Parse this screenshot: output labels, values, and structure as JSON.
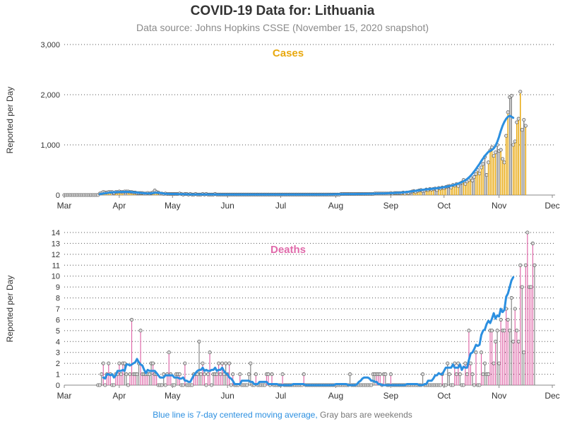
{
  "title": "COVID-19 Data for: Lithuania",
  "subtitle": "Data source: Johns Hopkins CSSE (November 15, 2020 snapshot)",
  "footer": {
    "moving_average_note": "Blue line is 7-day centered moving average,",
    "weekend_note": "Gray bars are weekends"
  },
  "colors": {
    "cases": "#e8a80e",
    "deaths": "#e06aaa",
    "moving_average": "#2b8fe0",
    "weekend": "#888888",
    "grid": "#555555",
    "axis_text": "#333333"
  },
  "chart_data": [
    {
      "type": "bar",
      "title": "Cases",
      "ylabel": "Reported per Day",
      "ylim": [
        0,
        3000
      ],
      "yticks": [
        "0",
        "1,000",
        "2,000",
        "3,000"
      ],
      "ytick_values": [
        0,
        1000,
        2000,
        3000
      ],
      "xlim": [
        "2020-03-01",
        "2020-12-01"
      ],
      "xticks": [
        "Mar",
        "Apr",
        "May",
        "Jun",
        "Jul",
        "Aug",
        "Sep",
        "Oct",
        "Nov",
        "Dec"
      ],
      "xtick_dates": [
        "2020-03-01",
        "2020-04-01",
        "2020-05-01",
        "2020-06-01",
        "2020-07-01",
        "2020-08-01",
        "2020-09-01",
        "2020-10-01",
        "2020-11-01",
        "2020-12-01"
      ],
      "start_date": "2020-03-01",
      "values": [
        0,
        0,
        0,
        0,
        0,
        0,
        0,
        0,
        0,
        0,
        0,
        0,
        0,
        0,
        0,
        0,
        0,
        0,
        0,
        0,
        30,
        40,
        60,
        50,
        50,
        60,
        60,
        60,
        40,
        60,
        60,
        70,
        60,
        60,
        70,
        70,
        70,
        60,
        60,
        50,
        50,
        40,
        40,
        40,
        40,
        30,
        30,
        40,
        30,
        40,
        50,
        90,
        60,
        50,
        30,
        30,
        20,
        30,
        20,
        20,
        20,
        20,
        20,
        20,
        20,
        30,
        20,
        10,
        20,
        20,
        10,
        20,
        10,
        10,
        20,
        10,
        10,
        10,
        20,
        10,
        20,
        10,
        10,
        10,
        10,
        20,
        10,
        10,
        10,
        10,
        10,
        10,
        10,
        10,
        10,
        10,
        10,
        10,
        10,
        10,
        10,
        10,
        10,
        10,
        10,
        10,
        10,
        10,
        10,
        10,
        10,
        10,
        10,
        10,
        10,
        10,
        10,
        10,
        10,
        10,
        10,
        10,
        10,
        10,
        10,
        10,
        10,
        10,
        10,
        10,
        10,
        10,
        10,
        10,
        10,
        10,
        10,
        10,
        10,
        10,
        10,
        10,
        10,
        10,
        10,
        10,
        10,
        10,
        10,
        10,
        10,
        10,
        10,
        10,
        10,
        10,
        20,
        20,
        20,
        20,
        20,
        20,
        20,
        20,
        20,
        20,
        20,
        20,
        20,
        20,
        20,
        20,
        20,
        20,
        20,
        30,
        30,
        30,
        30,
        30,
        30,
        30,
        30,
        30,
        40,
        30,
        40,
        40,
        40,
        40,
        40,
        50,
        30,
        50,
        40,
        60,
        70,
        80,
        60,
        80,
        90,
        100,
        80,
        90,
        110,
        100,
        120,
        110,
        120,
        130,
        100,
        140,
        130,
        150,
        140,
        160,
        170,
        180,
        150,
        200,
        190,
        220,
        180,
        230,
        250,
        300,
        220,
        270,
        300,
        340,
        290,
        360,
        420,
        500,
        430,
        550,
        620,
        760,
        400,
        650,
        890,
        950,
        780,
        850,
        1000,
        880,
        900,
        720,
        650,
        1180,
        1650,
        1950,
        1980,
        1000,
        1070,
        1450,
        1520,
        2060,
        1300,
        1500,
        1380
      ],
      "moving_average": [
        null,
        null,
        null,
        null,
        null,
        null,
        null,
        null,
        null,
        null,
        null,
        null,
        null,
        null,
        null,
        null,
        null,
        null,
        null,
        null,
        20,
        25,
        30,
        35,
        40,
        45,
        50,
        55,
        55,
        58,
        60,
        62,
        62,
        64,
        64,
        65,
        64,
        63,
        60,
        57,
        54,
        50,
        46,
        42,
        39,
        36,
        34,
        33,
        33,
        36,
        40,
        44,
        46,
        45,
        42,
        36,
        30,
        26,
        24,
        22,
        21,
        21,
        21,
        21,
        20,
        19,
        18,
        17,
        16,
        15,
        14,
        13,
        13,
        13,
        12,
        12,
        12,
        12,
        12,
        12,
        12,
        12,
        12,
        12,
        12,
        12,
        11,
        11,
        11,
        11,
        11,
        11,
        11,
        11,
        11,
        11,
        11,
        11,
        11,
        11,
        11,
        11,
        11,
        11,
        11,
        11,
        11,
        11,
        11,
        11,
        11,
        11,
        11,
        11,
        11,
        11,
        11,
        11,
        11,
        11,
        11,
        11,
        11,
        11,
        11,
        11,
        11,
        11,
        11,
        11,
        11,
        11,
        11,
        11,
        11,
        11,
        11,
        11,
        11,
        11,
        11,
        11,
        11,
        11,
        11,
        11,
        11,
        11,
        11,
        12,
        12,
        13,
        14,
        15,
        16,
        17,
        18,
        19,
        20,
        20,
        20,
        20,
        20,
        20,
        20,
        21,
        21,
        21,
        22,
        22,
        23,
        24,
        25,
        26,
        27,
        28,
        29,
        30,
        31,
        32,
        33,
        34,
        35,
        36,
        37,
        39,
        41,
        43,
        45,
        47,
        50,
        54,
        58,
        62,
        66,
        70,
        75,
        80,
        85,
        90,
        95,
        100,
        104,
        108,
        112,
        116,
        120,
        124,
        128,
        132,
        136,
        140,
        146,
        152,
        158,
        164,
        170,
        178,
        186,
        195,
        205,
        215,
        228,
        242,
        258,
        275,
        295,
        320,
        350,
        385,
        425,
        470,
        520,
        570,
        620,
        680,
        730,
        780,
        820,
        860,
        880,
        900,
        930,
        980,
        1060,
        1160,
        1280,
        1380,
        1460,
        1520,
        1560,
        1580,
        1560,
        1540
      ],
      "weekend_style": "gray bars"
    },
    {
      "type": "bar",
      "title": "Deaths",
      "ylabel": "Reported per Day",
      "ylim": [
        0,
        14
      ],
      "yticks": [
        "0",
        "1",
        "2",
        "3",
        "4",
        "5",
        "6",
        "7",
        "8",
        "9",
        "10",
        "11",
        "12",
        "13",
        "14"
      ],
      "ytick_values": [
        0,
        1,
        2,
        3,
        4,
        5,
        6,
        7,
        8,
        9,
        10,
        11,
        12,
        13,
        14
      ],
      "xlim": [
        "2020-03-01",
        "2020-12-01"
      ],
      "xticks": [
        "Mar",
        "Apr",
        "May",
        "Jun",
        "Jul",
        "Aug",
        "Sep",
        "Oct",
        "Nov",
        "Dec"
      ],
      "xtick_dates": [
        "2020-03-01",
        "2020-04-01",
        "2020-05-01",
        "2020-06-01",
        "2020-07-01",
        "2020-08-01",
        "2020-09-01",
        "2020-10-01",
        "2020-11-01",
        "2020-12-01"
      ],
      "start_date": "2020-03-20",
      "values": [
        0,
        0,
        1,
        2,
        0,
        1,
        2,
        1,
        0,
        0,
        1,
        1,
        2,
        1,
        2,
        2,
        1,
        0,
        1,
        6,
        1,
        1,
        1,
        2,
        5,
        1,
        1,
        1,
        1,
        1,
        2,
        2,
        1,
        1,
        0,
        0,
        0,
        1,
        0,
        1,
        3,
        1,
        0,
        0,
        1,
        1,
        1,
        0,
        0,
        2,
        0,
        0,
        0,
        0,
        1,
        1,
        1,
        4,
        1,
        2,
        1,
        0,
        1,
        3,
        0,
        1,
        1,
        1,
        2,
        1,
        2,
        1,
        2,
        1,
        2,
        0,
        1,
        0,
        0,
        0,
        1,
        0,
        0,
        0,
        0,
        1,
        2,
        0,
        0,
        1,
        0,
        0,
        0,
        0,
        0,
        1,
        1,
        0,
        1,
        0,
        0,
        0,
        0,
        0,
        1,
        0,
        0,
        0,
        0,
        0,
        0,
        0,
        0,
        0,
        0,
        0,
        1,
        0,
        0,
        0,
        0,
        0,
        0,
        0,
        0,
        0,
        0,
        0,
        0,
        0,
        0,
        0,
        0,
        0,
        0,
        0,
        0,
        0,
        0,
        0,
        0,
        0,
        1,
        0,
        0,
        0,
        0,
        0,
        0,
        0,
        0,
        0,
        0,
        0,
        0,
        1,
        1,
        1,
        1,
        1,
        0,
        1,
        1,
        0,
        0,
        1,
        0,
        0,
        0,
        0,
        0,
        0,
        0,
        0,
        0,
        0,
        0,
        0,
        0,
        0,
        0,
        0,
        0,
        1,
        0,
        0,
        0,
        0,
        0,
        0,
        0,
        0,
        0,
        0,
        1,
        0,
        0,
        2,
        1,
        0,
        0,
        2,
        1,
        2,
        1,
        0,
        0,
        2,
        1,
        5,
        2,
        1,
        0,
        3,
        0,
        0,
        3,
        1,
        2,
        1,
        1,
        5,
        5,
        2,
        4,
        5,
        2,
        6,
        5,
        5,
        7,
        6,
        5,
        8,
        4,
        7,
        5,
        4,
        11,
        9,
        3,
        11,
        14,
        9,
        9,
        13,
        11
      ],
      "moving_average": [
        null,
        null,
        null,
        0.7,
        0.6,
        1.0,
        1.0,
        0.9,
        1.0,
        0.7,
        0.9,
        1.3,
        1.3,
        1.3,
        1.4,
        1.3,
        1.9,
        1.9,
        1.8,
        1.9,
        2.0,
        2.1,
        2.4,
        2.1,
        1.9,
        1.8,
        1.4,
        1.1,
        1.4,
        1.3,
        1.3,
        1.3,
        1.3,
        1.1,
        0.9,
        0.7,
        0.7,
        0.7,
        0.9,
        0.9,
        0.9,
        0.9,
        0.9,
        0.7,
        0.7,
        0.7,
        0.6,
        0.6,
        0.7,
        0.4,
        0.4,
        0.3,
        0.3,
        0.6,
        0.9,
        1.1,
        1.3,
        1.4,
        1.4,
        1.6,
        1.3,
        1.4,
        1.3,
        1.3,
        1.4,
        1.4,
        1.6,
        1.3,
        1.4,
        1.4,
        1.6,
        1.3,
        1.1,
        1.0,
        0.7,
        0.6,
        0.4,
        0.1,
        0.1,
        0.1,
        0.1,
        0.4,
        0.4,
        0.4,
        0.4,
        0.4,
        0.3,
        0.3,
        0.1,
        0.1,
        0.1,
        0.3,
        0.3,
        0.3,
        0.3,
        0.3,
        0.1,
        0.1,
        0.1,
        0.1,
        0.1,
        0.1,
        0.0,
        0.0,
        0.0,
        0.0,
        0.0,
        0.0,
        0.0,
        0.0,
        0.1,
        0.1,
        0.1,
        0.1,
        0.1,
        0.1,
        0.1,
        0.0,
        0.0,
        0.0,
        0.0,
        0.0,
        0.0,
        0.0,
        0.0,
        0.0,
        0.0,
        0.0,
        0.0,
        0.0,
        0.0,
        0.0,
        0.0,
        0.0,
        0.1,
        0.1,
        0.1,
        0.1,
        0.1,
        0.1,
        0.1,
        0.0,
        0.0,
        0.0,
        0.0,
        0.0,
        0.1,
        0.3,
        0.4,
        0.6,
        0.7,
        0.7,
        0.7,
        0.6,
        0.4,
        0.4,
        0.3,
        0.3,
        0.1,
        0.1,
        0.0,
        0.0,
        0.0,
        0.0,
        0.0,
        0.0,
        0.0,
        0.0,
        0.0,
        0.0,
        0.0,
        0.0,
        0.0,
        0.0,
        0.1,
        0.1,
        0.1,
        0.1,
        0.1,
        0.1,
        0.1,
        0.0,
        0.0,
        0.0,
        0.1,
        0.1,
        0.4,
        0.4,
        0.4,
        0.6,
        0.9,
        0.9,
        1.1,
        1.0,
        1.0,
        1.3,
        1.6,
        1.6,
        1.6,
        1.6,
        1.9,
        1.6,
        1.6,
        1.6,
        1.9,
        1.4,
        1.7,
        1.6,
        1.6,
        2.3,
        2.9,
        3.0,
        3.3,
        3.7,
        3.6,
        3.7,
        4.6,
        5.0,
        5.1,
        5.6,
        5.9,
        5.7,
        6.1,
        6.6,
        6.1,
        6.4,
        6.3,
        7.0,
        6.7,
        6.9,
        8.1,
        8.4,
        9.0,
        9.6,
        9.9
      ]
    }
  ]
}
